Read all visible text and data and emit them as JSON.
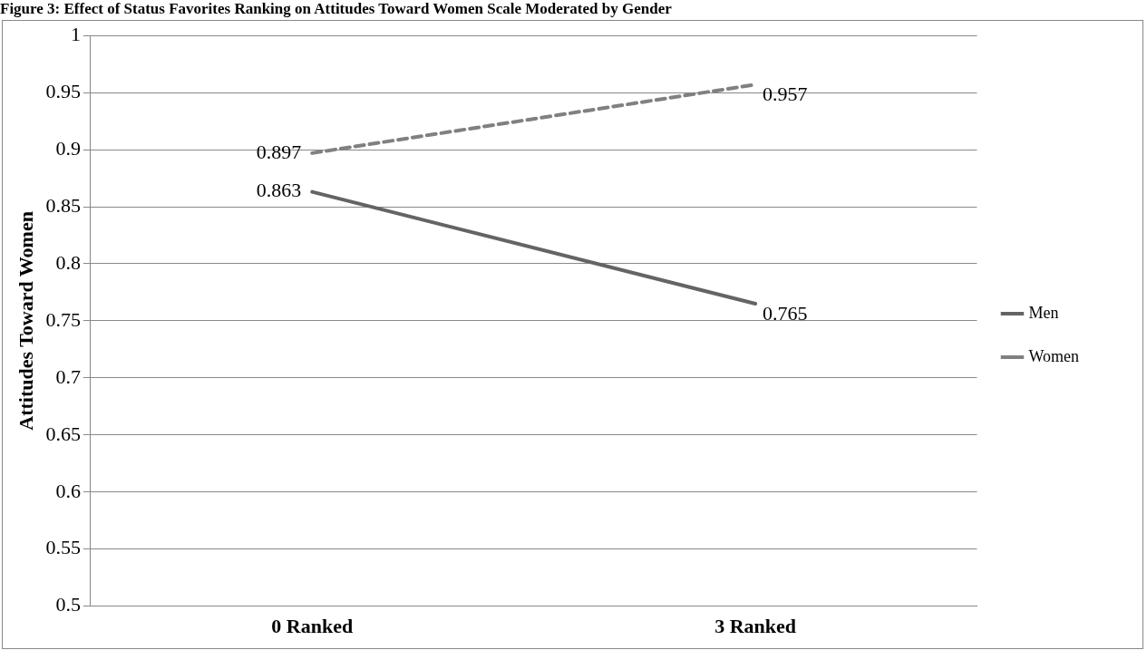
{
  "chart_data": {
    "type": "line",
    "title": "Figure 3: Effect of Status Favorites Ranking on Attitudes Toward Women Scale Moderated by Gender",
    "ylabel": "Attitudes Toward Women",
    "categories": [
      "0 Ranked",
      "3 Ranked"
    ],
    "series": [
      {
        "name": "Men",
        "color": "#646464",
        "values": [
          0.863,
          0.765
        ]
      },
      {
        "name": "Women",
        "color": "#808080",
        "values": [
          0.897,
          0.957
        ],
        "line_style": "dashed"
      }
    ],
    "ylim": [
      0.5,
      1
    ],
    "yticks": [
      0.5,
      0.55,
      0.6,
      0.65,
      0.7,
      0.75,
      0.8,
      0.85,
      0.9,
      0.95,
      1
    ],
    "grid": "y",
    "legend": "right",
    "marker": "none",
    "data_labels": true
  }
}
